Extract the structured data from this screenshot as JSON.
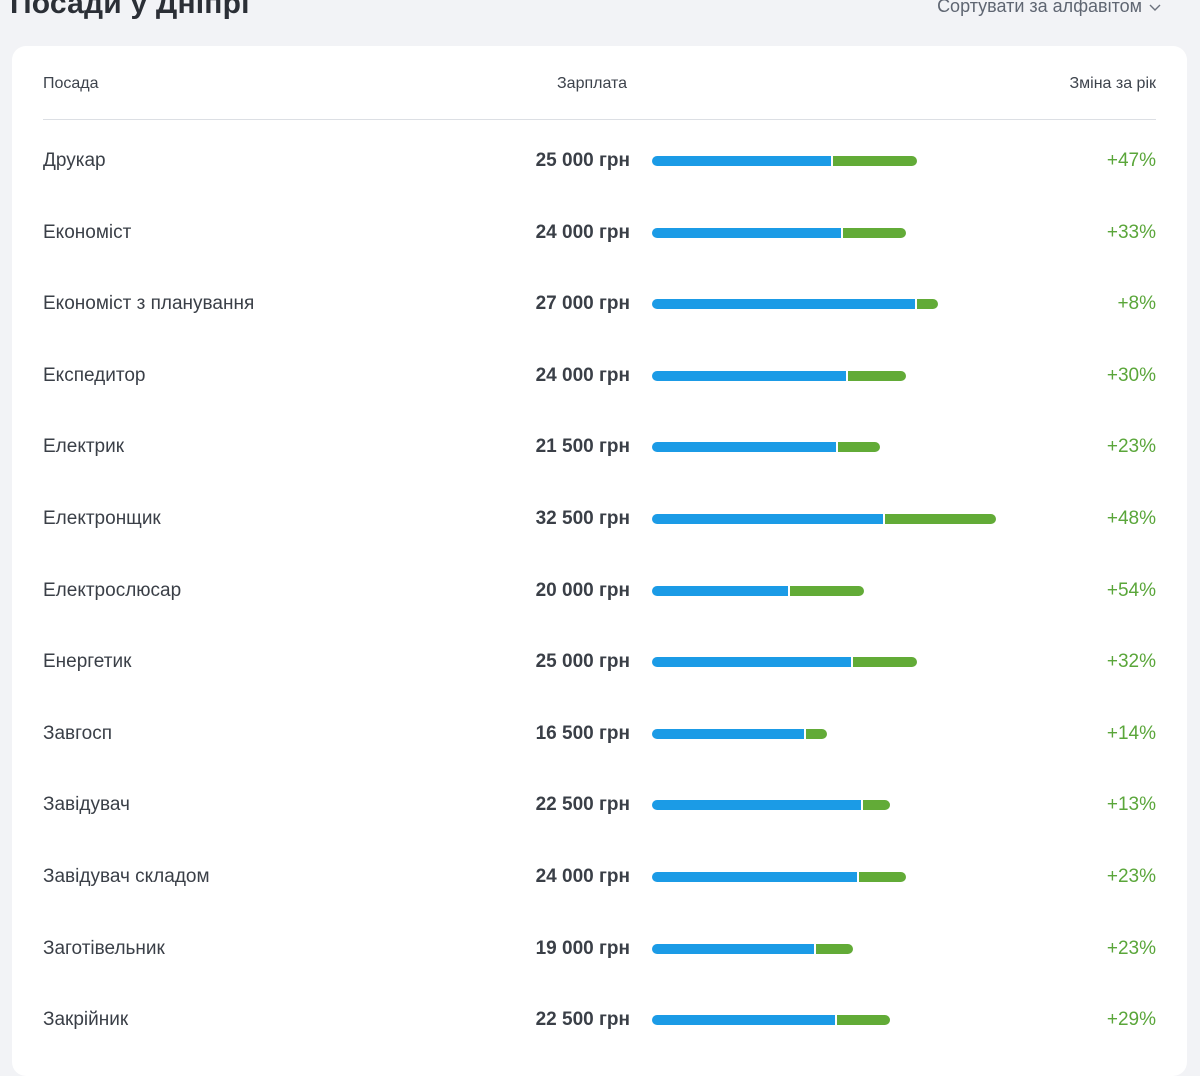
{
  "page": {
    "title": "Посади у Дніпрі",
    "sort_label": "Сортувати за алфавітом"
  },
  "table": {
    "columns": {
      "title": "Посада",
      "salary": "Зарплата",
      "change": "Зміна за рік"
    },
    "rows": [
      {
        "title": "Друкар",
        "salary": "25 000 грн",
        "change": "+47%",
        "salary_value": 25000,
        "change_pct": 47
      },
      {
        "title": "Економіст",
        "salary": "24 000 грн",
        "change": "+33%",
        "salary_value": 24000,
        "change_pct": 33
      },
      {
        "title": "Економіст з планування",
        "salary": "27 000 грн",
        "change": "+8%",
        "salary_value": 27000,
        "change_pct": 8
      },
      {
        "title": "Експедитор",
        "salary": "24 000 грн",
        "change": "+30%",
        "salary_value": 24000,
        "change_pct": 30
      },
      {
        "title": "Електрик",
        "salary": "21 500 грн",
        "change": "+23%",
        "salary_value": 21500,
        "change_pct": 23
      },
      {
        "title": "Електронщик",
        "salary": "32 500 грн",
        "change": "+48%",
        "salary_value": 32500,
        "change_pct": 48
      },
      {
        "title": "Електрослюсар",
        "salary": "20 000 грн",
        "change": "+54%",
        "salary_value": 20000,
        "change_pct": 54
      },
      {
        "title": "Енергетик",
        "salary": "25 000 грн",
        "change": "+32%",
        "salary_value": 25000,
        "change_pct": 32
      },
      {
        "title": "Завгосп",
        "salary": "16 500 грн",
        "change": "+14%",
        "salary_value": 16500,
        "change_pct": 14
      },
      {
        "title": "Завідувач",
        "salary": "22 500 грн",
        "change": "+13%",
        "salary_value": 22500,
        "change_pct": 13
      },
      {
        "title": "Завідувач складом",
        "salary": "24 000 грн",
        "change": "+23%",
        "salary_value": 24000,
        "change_pct": 23
      },
      {
        "title": "Заготівельник",
        "salary": "19 000 грн",
        "change": "+23%",
        "salary_value": 19000,
        "change_pct": 23
      },
      {
        "title": "Закрійник",
        "salary": "22 500 грн",
        "change": "+29%",
        "salary_value": 22500,
        "change_pct": 29
      }
    ]
  },
  "colors": {
    "current_bar": "#1b9be6",
    "growth_bar": "#62ab37",
    "positive_change": "#5aa63a"
  },
  "icons": {
    "sort_chevron": "chevron-down-icon"
  }
}
